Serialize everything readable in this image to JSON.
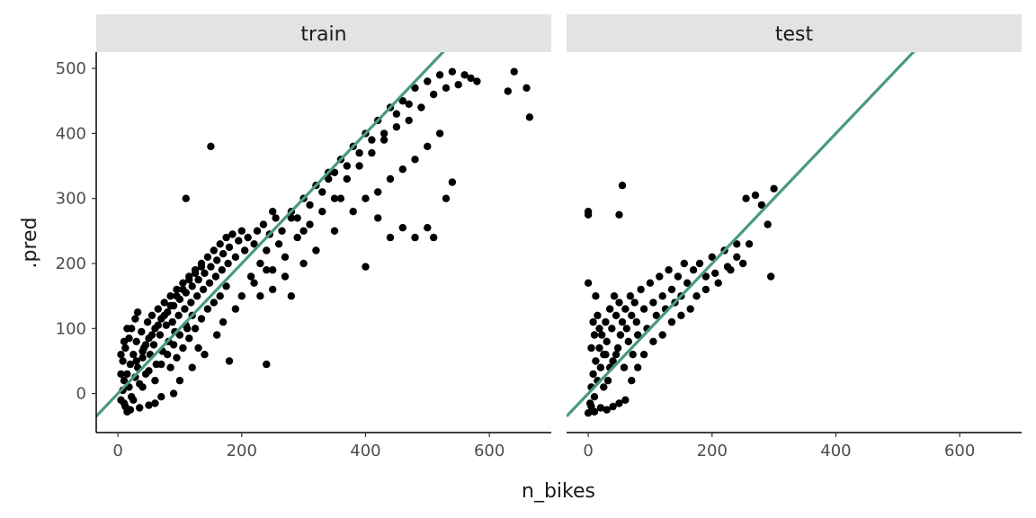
{
  "chart_data": {
    "type": "scatter",
    "facets": [
      "train",
      "test"
    ],
    "xlabel": "n_bikes",
    "ylabel": ".pred",
    "xlim": [
      -35,
      700
    ],
    "ylim": [
      -60,
      525
    ],
    "x_ticks": [
      0,
      200,
      400,
      600
    ],
    "y_ticks": [
      0,
      100,
      200,
      300,
      400,
      500
    ],
    "point_color": "#000000",
    "reference_line": {
      "type": "identity",
      "slope": 1,
      "intercept": 0,
      "color": "#4a9a78"
    },
    "grid": false,
    "panels": [
      {
        "name": "train",
        "points": [
          [
            5,
            -10
          ],
          [
            8,
            5
          ],
          [
            10,
            20
          ],
          [
            12,
            -20
          ],
          [
            15,
            30
          ],
          [
            18,
            10
          ],
          [
            20,
            45
          ],
          [
            22,
            -5
          ],
          [
            25,
            60
          ],
          [
            28,
            25
          ],
          [
            30,
            80
          ],
          [
            32,
            40
          ],
          [
            35,
            15
          ],
          [
            38,
            95
          ],
          [
            40,
            55
          ],
          [
            42,
            70
          ],
          [
            45,
            30
          ],
          [
            48,
            110
          ],
          [
            50,
            85
          ],
          [
            52,
            60
          ],
          [
            55,
            120
          ],
          [
            58,
            75
          ],
          [
            60,
            100
          ],
          [
            62,
            45
          ],
          [
            65,
            130
          ],
          [
            68,
            90
          ],
          [
            70,
            115
          ],
          [
            72,
            65
          ],
          [
            75,
            140
          ],
          [
            78,
            105
          ],
          [
            80,
            125
          ],
          [
            82,
            80
          ],
          [
            85,
            150
          ],
          [
            88,
            110
          ],
          [
            90,
            135
          ],
          [
            92,
            95
          ],
          [
            95,
            160
          ],
          [
            98,
            120
          ],
          [
            100,
            145
          ],
          [
            105,
            170
          ],
          [
            108,
            130
          ],
          [
            110,
            155
          ],
          [
            112,
            100
          ],
          [
            115,
            180
          ],
          [
            118,
            140
          ],
          [
            120,
            165
          ],
          [
            125,
            190
          ],
          [
            128,
            150
          ],
          [
            130,
            175
          ],
          [
            135,
            200
          ],
          [
            138,
            160
          ],
          [
            140,
            185
          ],
          [
            145,
            210
          ],
          [
            148,
            170
          ],
          [
            150,
            195
          ],
          [
            155,
            220
          ],
          [
            158,
            180
          ],
          [
            160,
            205
          ],
          [
            165,
            230
          ],
          [
            168,
            190
          ],
          [
            170,
            215
          ],
          [
            175,
            240
          ],
          [
            178,
            200
          ],
          [
            180,
            225
          ],
          [
            185,
            245
          ],
          [
            190,
            210
          ],
          [
            195,
            235
          ],
          [
            200,
            250
          ],
          [
            205,
            220
          ],
          [
            210,
            240
          ],
          [
            215,
            180
          ],
          [
            220,
            230
          ],
          [
            225,
            250
          ],
          [
            230,
            200
          ],
          [
            235,
            260
          ],
          [
            240,
            220
          ],
          [
            245,
            245
          ],
          [
            250,
            190
          ],
          [
            255,
            270
          ],
          [
            260,
            230
          ],
          [
            265,
            250
          ],
          [
            270,
            210
          ],
          [
            280,
            280
          ],
          [
            290,
            240
          ],
          [
            300,
            300
          ],
          [
            310,
            260
          ],
          [
            320,
            320
          ],
          [
            330,
            280
          ],
          [
            340,
            340
          ],
          [
            350,
            300
          ],
          [
            360,
            360
          ],
          [
            370,
            330
          ],
          [
            380,
            380
          ],
          [
            390,
            350
          ],
          [
            400,
            400
          ],
          [
            410,
            370
          ],
          [
            420,
            420
          ],
          [
            430,
            390
          ],
          [
            440,
            440
          ],
          [
            450,
            410
          ],
          [
            460,
            450
          ],
          [
            470,
            420
          ],
          [
            480,
            470
          ],
          [
            490,
            440
          ],
          [
            500,
            480
          ],
          [
            510,
            460
          ],
          [
            520,
            490
          ],
          [
            530,
            470
          ],
          [
            540,
            495
          ],
          [
            550,
            475
          ],
          [
            560,
            490
          ],
          [
            570,
            485
          ],
          [
            580,
            480
          ],
          [
            630,
            465
          ],
          [
            640,
            495
          ],
          [
            660,
            470
          ],
          [
            665,
            425
          ],
          [
            540,
            325
          ],
          [
            530,
            300
          ],
          [
            500,
            255
          ],
          [
            510,
            240
          ],
          [
            480,
            240
          ],
          [
            460,
            255
          ],
          [
            440,
            240
          ],
          [
            420,
            270
          ],
          [
            400,
            195
          ],
          [
            360,
            300
          ],
          [
            340,
            330
          ],
          [
            300,
            250
          ],
          [
            280,
            270
          ],
          [
            250,
            280
          ],
          [
            240,
            45
          ],
          [
            180,
            50
          ],
          [
            150,
            380
          ],
          [
            110,
            300
          ],
          [
            40,
            10
          ],
          [
            60,
            -15
          ],
          [
            20,
            -25
          ],
          [
            10,
            -15
          ],
          [
            15,
            -28
          ],
          [
            35,
            -22
          ],
          [
            50,
            -18
          ],
          [
            25,
            -10
          ],
          [
            70,
            -5
          ],
          [
            90,
            0
          ],
          [
            100,
            20
          ],
          [
            120,
            40
          ],
          [
            140,
            60
          ],
          [
            160,
            90
          ],
          [
            130,
            70
          ],
          [
            200,
            150
          ],
          [
            190,
            130
          ],
          [
            170,
            110
          ],
          [
            220,
            170
          ],
          [
            240,
            190
          ],
          [
            230,
            150
          ],
          [
            250,
            160
          ],
          [
            270,
            180
          ],
          [
            300,
            200
          ],
          [
            280,
            150
          ],
          [
            320,
            220
          ],
          [
            350,
            250
          ],
          [
            380,
            280
          ],
          [
            400,
            300
          ],
          [
            420,
            310
          ],
          [
            440,
            330
          ],
          [
            460,
            345
          ],
          [
            480,
            360
          ],
          [
            500,
            380
          ],
          [
            520,
            400
          ],
          [
            330,
            310
          ],
          [
            310,
            290
          ],
          [
            290,
            270
          ],
          [
            350,
            340
          ],
          [
            370,
            350
          ],
          [
            390,
            370
          ],
          [
            410,
            390
          ],
          [
            430,
            400
          ],
          [
            450,
            430
          ],
          [
            470,
            445
          ],
          [
            85,
            40
          ],
          [
            95,
            55
          ],
          [
            105,
            70
          ],
          [
            115,
            85
          ],
          [
            125,
            100
          ],
          [
            135,
            115
          ],
          [
            145,
            130
          ],
          [
            155,
            140
          ],
          [
            165,
            150
          ],
          [
            175,
            165
          ],
          [
            45,
            75
          ],
          [
            55,
            90
          ],
          [
            65,
            105
          ],
          [
            75,
            120
          ],
          [
            85,
            135
          ],
          [
            95,
            150
          ],
          [
            105,
            160
          ],
          [
            115,
            175
          ],
          [
            125,
            185
          ],
          [
            135,
            195
          ],
          [
            30,
            50
          ],
          [
            40,
            65
          ],
          [
            50,
            35
          ],
          [
            60,
            20
          ],
          [
            70,
            45
          ],
          [
            80,
            60
          ],
          [
            90,
            75
          ],
          [
            100,
            90
          ],
          [
            110,
            105
          ],
          [
            120,
            120
          ],
          [
            5,
            30
          ],
          [
            8,
            50
          ],
          [
            12,
            70
          ],
          [
            18,
            85
          ],
          [
            22,
            100
          ],
          [
            28,
            115
          ],
          [
            32,
            125
          ],
          [
            5,
            60
          ],
          [
            10,
            80
          ],
          [
            15,
            100
          ]
        ]
      },
      {
        "name": "test",
        "points": [
          [
            0,
            -30
          ],
          [
            3,
            -15
          ],
          [
            5,
            10
          ],
          [
            8,
            30
          ],
          [
            10,
            -5
          ],
          [
            12,
            50
          ],
          [
            15,
            20
          ],
          [
            18,
            70
          ],
          [
            20,
            40
          ],
          [
            22,
            90
          ],
          [
            25,
            60
          ],
          [
            28,
            110
          ],
          [
            30,
            80
          ],
          [
            32,
            20
          ],
          [
            35,
            130
          ],
          [
            38,
            100
          ],
          [
            40,
            50
          ],
          [
            42,
            150
          ],
          [
            45,
            120
          ],
          [
            48,
            70
          ],
          [
            50,
            140
          ],
          [
            52,
            90
          ],
          [
            55,
            110
          ],
          [
            58,
            40
          ],
          [
            60,
            130
          ],
          [
            62,
            100
          ],
          [
            65,
            80
          ],
          [
            68,
            150
          ],
          [
            70,
            120
          ],
          [
            72,
            60
          ],
          [
            75,
            140
          ],
          [
            78,
            110
          ],
          [
            80,
            90
          ],
          [
            85,
            160
          ],
          [
            90,
            130
          ],
          [
            95,
            100
          ],
          [
            100,
            170
          ],
          [
            105,
            140
          ],
          [
            110,
            120
          ],
          [
            115,
            180
          ],
          [
            120,
            150
          ],
          [
            125,
            130
          ],
          [
            130,
            190
          ],
          [
            135,
            160
          ],
          [
            140,
            140
          ],
          [
            145,
            180
          ],
          [
            150,
            150
          ],
          [
            155,
            200
          ],
          [
            160,
            170
          ],
          [
            170,
            190
          ],
          [
            180,
            200
          ],
          [
            190,
            180
          ],
          [
            200,
            210
          ],
          [
            210,
            170
          ],
          [
            220,
            220
          ],
          [
            230,
            190
          ],
          [
            240,
            230
          ],
          [
            250,
            200
          ],
          [
            255,
            300
          ],
          [
            270,
            305
          ],
          [
            280,
            290
          ],
          [
            290,
            260
          ],
          [
            295,
            180
          ],
          [
            300,
            315
          ],
          [
            260,
            230
          ],
          [
            240,
            210
          ],
          [
            225,
            195
          ],
          [
            205,
            185
          ],
          [
            190,
            160
          ],
          [
            175,
            150
          ],
          [
            165,
            130
          ],
          [
            150,
            120
          ],
          [
            135,
            110
          ],
          [
            120,
            90
          ],
          [
            105,
            80
          ],
          [
            90,
            60
          ],
          [
            80,
            40
          ],
          [
            70,
            20
          ],
          [
            60,
            -10
          ],
          [
            50,
            -15
          ],
          [
            40,
            -20
          ],
          [
            30,
            -25
          ],
          [
            20,
            -22
          ],
          [
            10,
            -28
          ],
          [
            5,
            -20
          ],
          [
            0,
            275
          ],
          [
            0,
            280
          ],
          [
            55,
            320
          ],
          [
            50,
            275
          ],
          [
            25,
            10
          ],
          [
            35,
            40
          ],
          [
            45,
            60
          ],
          [
            15,
            120
          ],
          [
            10,
            90
          ],
          [
            5,
            70
          ],
          [
            0,
            170
          ],
          [
            8,
            110
          ],
          [
            12,
            150
          ],
          [
            18,
            100
          ],
          [
            28,
            60
          ]
        ]
      }
    ]
  }
}
